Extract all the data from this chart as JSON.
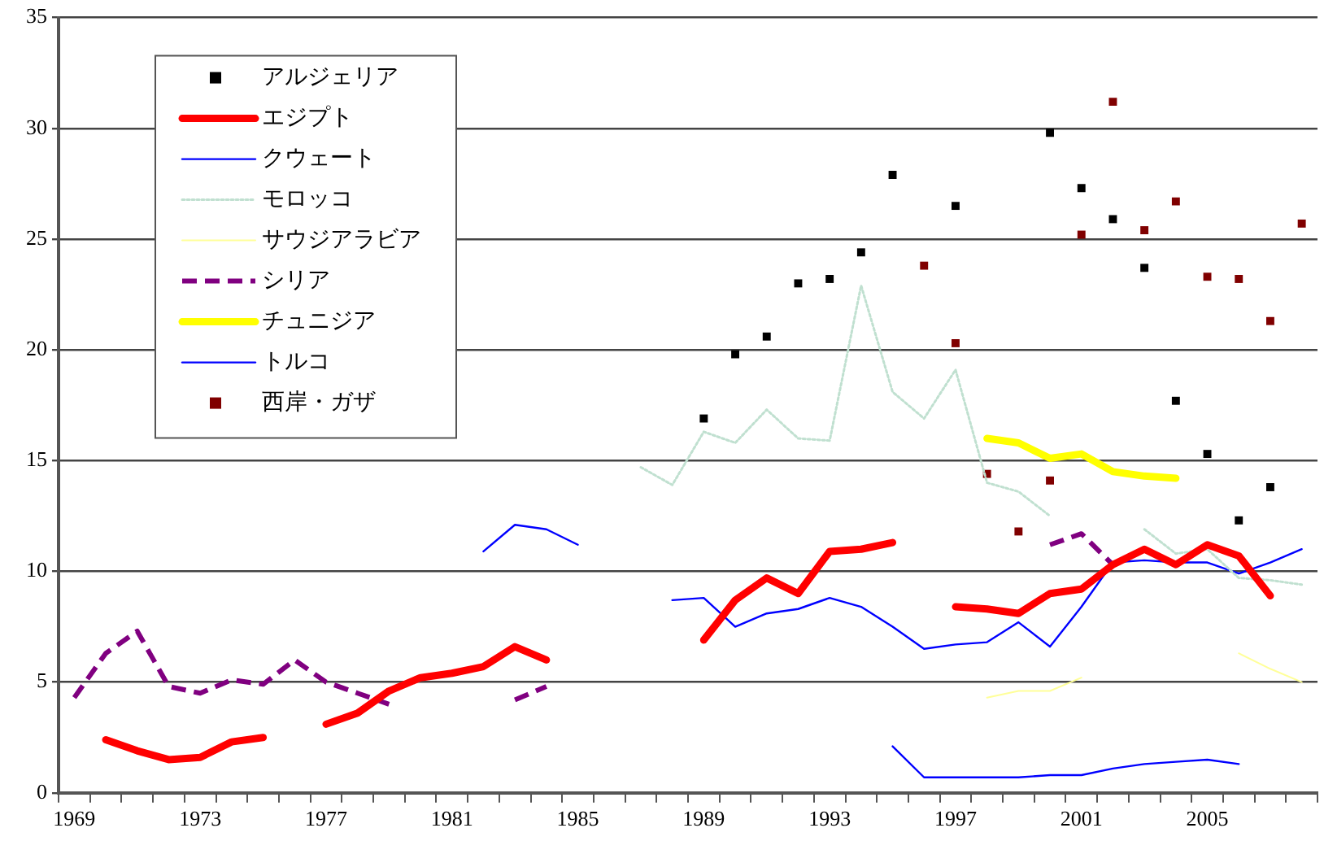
{
  "chart_data": {
    "type": "line",
    "categories": [
      "1969",
      null,
      null,
      null,
      "1973",
      null,
      null,
      null,
      "1977",
      null,
      null,
      null,
      "1981",
      null,
      null,
      null,
      "1985",
      null,
      null,
      null,
      "1989",
      null,
      null,
      null,
      "1993",
      null,
      null,
      null,
      "1997",
      null,
      null,
      null,
      "2001",
      null,
      null,
      null,
      "2005",
      null,
      null,
      null
    ],
    "ylim": [
      0,
      35
    ],
    "yticks": [
      0,
      5,
      10,
      15,
      20,
      25,
      30,
      35
    ],
    "grid": "y",
    "legend": "top left",
    "series": [
      {
        "name": "アルジェリア",
        "type": "scatter",
        "marker": "square",
        "color": "#000000",
        "values": [
          null,
          null,
          null,
          null,
          null,
          null,
          null,
          null,
          null,
          null,
          null,
          null,
          null,
          null,
          null,
          null,
          null,
          null,
          null,
          null,
          16.9,
          19.8,
          20.6,
          23.0,
          23.2,
          24.4,
          27.9,
          null,
          26.5,
          null,
          null,
          29.8,
          27.3,
          25.9,
          23.7,
          17.7,
          15.3,
          12.3,
          13.8,
          null
        ]
      },
      {
        "name": "エジプト",
        "line_style": "solid",
        "color": "#ff0000",
        "values": [
          null,
          2.4,
          1.9,
          1.5,
          1.6,
          2.3,
          2.5,
          null,
          3.1,
          3.6,
          4.6,
          5.2,
          5.4,
          5.7,
          6.6,
          6.0,
          null,
          null,
          null,
          null,
          6.9,
          8.7,
          9.7,
          9.0,
          10.9,
          11.0,
          11.3,
          null,
          8.4,
          8.3,
          8.1,
          9.0,
          9.2,
          10.3,
          11.0,
          10.3,
          11.2,
          10.7,
          8.9,
          null
        ]
      },
      {
        "name": "クウェート",
        "line_style": "solid",
        "color": "#0000ff",
        "values": [
          null,
          null,
          null,
          null,
          null,
          null,
          null,
          null,
          null,
          null,
          null,
          null,
          null,
          null,
          null,
          null,
          null,
          null,
          null,
          null,
          null,
          null,
          null,
          null,
          null,
          null,
          2.1,
          0.7,
          0.7,
          0.7,
          0.7,
          0.8,
          0.8,
          1.1,
          1.3,
          1.4,
          1.5,
          1.3,
          null,
          null
        ]
      },
      {
        "name": "モロッコ",
        "line_style": "dotted",
        "color": "#c0e0d0",
        "values": [
          null,
          null,
          null,
          null,
          null,
          null,
          null,
          null,
          null,
          null,
          null,
          null,
          null,
          null,
          null,
          null,
          null,
          null,
          14.7,
          13.9,
          16.3,
          15.8,
          17.3,
          16.0,
          15.9,
          22.9,
          18.1,
          16.9,
          19.1,
          14.0,
          13.6,
          12.5,
          null,
          null,
          11.9,
          10.8,
          11.0,
          9.7,
          9.6,
          9.4
        ]
      },
      {
        "name": "サウジアラビア",
        "line_style": "solid",
        "color": "#ffff99",
        "values": [
          null,
          null,
          null,
          null,
          null,
          null,
          null,
          null,
          null,
          null,
          null,
          null,
          null,
          null,
          null,
          null,
          null,
          null,
          null,
          null,
          null,
          null,
          null,
          null,
          null,
          null,
          null,
          null,
          null,
          4.3,
          4.6,
          4.6,
          5.2,
          null,
          null,
          null,
          null,
          6.3,
          5.6,
          5.0
        ]
      },
      {
        "name": "シリア",
        "line_style": "dashed",
        "color": "#800080",
        "values": [
          4.3,
          6.3,
          7.3,
          4.8,
          4.5,
          5.1,
          4.9,
          6.0,
          5.0,
          4.5,
          4.0,
          null,
          null,
          null,
          4.2,
          4.8,
          null,
          null,
          null,
          null,
          null,
          null,
          null,
          null,
          null,
          null,
          null,
          null,
          null,
          null,
          null,
          11.2,
          11.7,
          10.3,
          null,
          null,
          null,
          null,
          null,
          null
        ]
      },
      {
        "name": "チュニジア",
        "line_style": "solid",
        "color": "#ffff00",
        "values": [
          null,
          null,
          null,
          null,
          null,
          null,
          null,
          null,
          null,
          null,
          null,
          null,
          null,
          null,
          null,
          null,
          null,
          null,
          null,
          null,
          null,
          null,
          null,
          null,
          null,
          null,
          null,
          null,
          null,
          16.0,
          15.8,
          15.1,
          15.3,
          14.5,
          14.3,
          14.2,
          null,
          null,
          null,
          null
        ]
      },
      {
        "name": "トルコ",
        "line_style": "solid",
        "color": "#0000ff",
        "values": [
          null,
          null,
          null,
          null,
          null,
          null,
          null,
          null,
          null,
          null,
          null,
          null,
          null,
          10.9,
          12.1,
          11.9,
          11.2,
          null,
          null,
          8.7,
          8.8,
          7.5,
          8.1,
          8.3,
          8.8,
          8.4,
          7.5,
          6.5,
          6.7,
          6.8,
          7.7,
          6.6,
          8.4,
          10.4,
          10.5,
          10.4,
          10.4,
          9.9,
          10.4,
          11.0
        ]
      },
      {
        "name": "西岸・ガザ",
        "type": "scatter",
        "marker": "square",
        "color": "#800000",
        "values": [
          null,
          null,
          null,
          null,
          null,
          null,
          null,
          null,
          null,
          null,
          null,
          null,
          null,
          null,
          null,
          null,
          null,
          null,
          null,
          null,
          null,
          null,
          null,
          null,
          null,
          null,
          null,
          23.8,
          20.3,
          14.4,
          11.8,
          14.1,
          25.2,
          31.2,
          25.4,
          26.7,
          23.3,
          23.2,
          21.3,
          25.7
        ]
      }
    ]
  }
}
